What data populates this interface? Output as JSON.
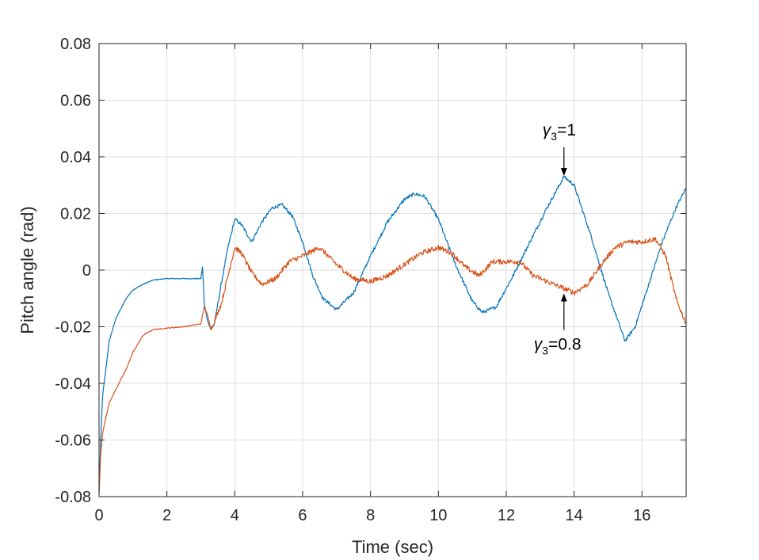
{
  "chart_data": {
    "type": "line",
    "title": "",
    "xlabel": "Time (sec)",
    "ylabel": "Pitch angle (rad)",
    "xlim": [
      0,
      17.3
    ],
    "ylim": [
      -0.08,
      0.08
    ],
    "grid": true,
    "xticks": [
      "0",
      "2",
      "4",
      "6",
      "8",
      "10",
      "12",
      "14",
      "16"
    ],
    "yticks": [
      "-0.08",
      "-0.06",
      "-0.04",
      "-0.02",
      "0",
      "0.02",
      "0.04",
      "0.06",
      "0.08"
    ],
    "annotations": [
      {
        "symbol": "γ",
        "sub": "3",
        "rest": "=1",
        "target_x": 13.7,
        "target_y": 0.033
      },
      {
        "symbol": "γ",
        "sub": "3",
        "rest": "=0.8",
        "target_x": 13.7,
        "target_y": -0.008
      }
    ],
    "series": [
      {
        "color": "#0072BD",
        "style": "dashed-start",
        "x": [
          0,
          0.05,
          0.1,
          0.2,
          0.3,
          0.5,
          0.8,
          1.0,
          1.3,
          1.6,
          2.0,
          2.5,
          3.0,
          3.05,
          3.1,
          3.2,
          3.3,
          3.4,
          3.6,
          3.8,
          4.0,
          4.2,
          4.5,
          4.8,
          5.1,
          5.4,
          5.7,
          6.0,
          6.3,
          6.6,
          7.0,
          7.5,
          8.0,
          8.5,
          9.0,
          9.3,
          9.6,
          10.0,
          10.5,
          11.0,
          11.3,
          11.7,
          12.2,
          12.7,
          13.2,
          13.7,
          14.0,
          14.5,
          15.0,
          15.5,
          15.8,
          16.2,
          16.6,
          17.0,
          17.3
        ],
        "y": [
          -0.079,
          -0.06,
          -0.045,
          -0.035,
          -0.025,
          -0.017,
          -0.01,
          -0.007,
          -0.005,
          -0.0035,
          -0.003,
          -0.003,
          -0.003,
          0.001,
          -0.012,
          -0.018,
          -0.021,
          -0.019,
          -0.005,
          0.008,
          0.018,
          0.016,
          0.01,
          0.017,
          0.022,
          0.023,
          0.019,
          0.01,
          -0.002,
          -0.01,
          -0.014,
          -0.008,
          0.005,
          0.017,
          0.025,
          0.027,
          0.026,
          0.018,
          0.002,
          -0.011,
          -0.015,
          -0.013,
          -0.002,
          0.01,
          0.022,
          0.033,
          0.03,
          0.012,
          -0.008,
          -0.025,
          -0.02,
          -0.005,
          0.01,
          0.022,
          0.029
        ]
      },
      {
        "color": "#D95319",
        "style": "solid",
        "x": [
          0,
          0.05,
          0.1,
          0.2,
          0.3,
          0.5,
          0.8,
          1.0,
          1.3,
          1.6,
          2.0,
          2.5,
          3.0,
          3.1,
          3.2,
          3.3,
          3.4,
          3.6,
          3.8,
          4.0,
          4.2,
          4.5,
          4.8,
          5.2,
          5.6,
          6.0,
          6.5,
          7.0,
          7.5,
          8.0,
          8.5,
          9.0,
          9.5,
          10.0,
          10.4,
          10.8,
          11.2,
          11.6,
          12.0,
          12.4,
          12.8,
          13.2,
          13.6,
          14.0,
          14.4,
          14.8,
          15.2,
          15.6,
          16.0,
          16.4,
          16.7,
          17.0,
          17.3
        ],
        "y": [
          -0.079,
          -0.065,
          -0.058,
          -0.052,
          -0.047,
          -0.042,
          -0.035,
          -0.029,
          -0.023,
          -0.021,
          -0.0205,
          -0.02,
          -0.019,
          -0.013,
          -0.016,
          -0.021,
          -0.018,
          -0.012,
          -0.002,
          0.008,
          0.006,
          -0.001,
          -0.005,
          -0.003,
          0.003,
          0.005,
          0.008,
          0.002,
          -0.003,
          -0.004,
          -0.002,
          0.002,
          0.006,
          0.008,
          0.006,
          0.001,
          -0.002,
          0.003,
          0.003,
          0.003,
          -0.002,
          -0.004,
          -0.006,
          -0.008,
          -0.005,
          0.002,
          0.008,
          0.01,
          0.01,
          0.011,
          0.005,
          -0.01,
          -0.019
        ]
      }
    ]
  }
}
